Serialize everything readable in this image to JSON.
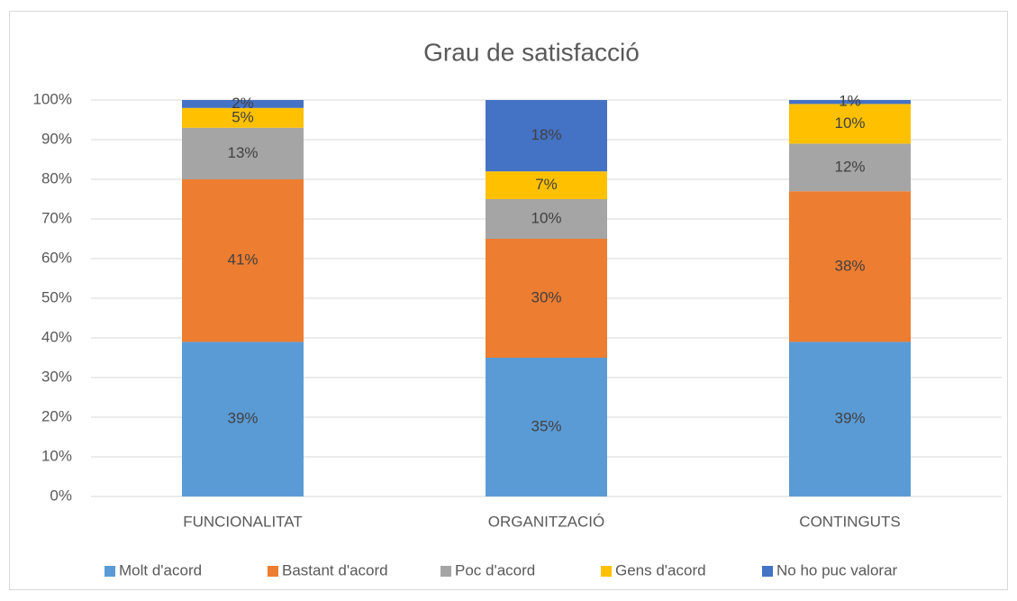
{
  "chart_data": {
    "type": "stacked_bar",
    "title": "Grau de satisfacció",
    "categories": [
      "FUNCIONALITAT",
      "ORGANITZACIÓ",
      "CONTINGUTS"
    ],
    "series": [
      {
        "name": "Molt d'acord",
        "color": "#5b9bd5",
        "values": [
          39,
          35,
          39
        ],
        "value_labels": [
          "39%",
          "35%",
          "39%"
        ]
      },
      {
        "name": "Bastant d'acord",
        "color": "#ed7d31",
        "values": [
          41,
          30,
          38
        ],
        "value_labels": [
          "41%",
          "30%",
          "38%"
        ]
      },
      {
        "name": "Poc d'acord",
        "color": "#a5a5a5",
        "values": [
          13,
          10,
          12
        ],
        "value_labels": [
          "13%",
          "10%",
          "12%"
        ]
      },
      {
        "name": "Gens d'acord",
        "color": "#ffc000",
        "values": [
          5,
          7,
          10
        ],
        "value_labels": [
          "5%",
          "7%",
          "10%"
        ]
      },
      {
        "name": "No ho puc valorar",
        "color": "#4472c4",
        "values": [
          2,
          18,
          1
        ],
        "value_labels": [
          "2%",
          "18%",
          "1%"
        ]
      }
    ],
    "ylim": [
      0,
      100
    ],
    "yticks": [
      {
        "value": 0,
        "label": "0%"
      },
      {
        "value": 10,
        "label": "10%"
      },
      {
        "value": 20,
        "label": "20%"
      },
      {
        "value": 30,
        "label": "30%"
      },
      {
        "value": 40,
        "label": "40%"
      },
      {
        "value": 50,
        "label": "50%"
      },
      {
        "value": 60,
        "label": "60%"
      },
      {
        "value": 70,
        "label": "70%"
      },
      {
        "value": 80,
        "label": "80%"
      },
      {
        "value": 90,
        "label": "90%"
      },
      {
        "value": 100,
        "label": "100%"
      }
    ],
    "grid": true,
    "legend": "bottom"
  }
}
